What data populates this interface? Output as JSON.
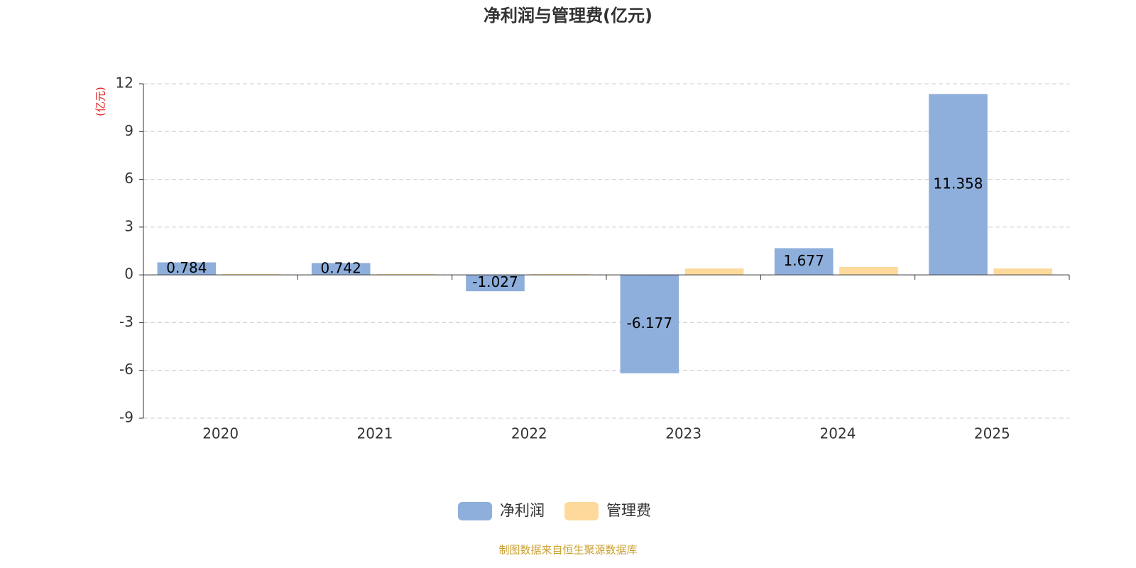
{
  "chart_data": {
    "type": "bar",
    "title": "净利润与管理费(亿元)",
    "y_label": "(亿元)",
    "source": "制图数据来自恒生聚源数据库",
    "categories": [
      "2020",
      "2021",
      "2022",
      "2023",
      "2024",
      "2025"
    ],
    "series": [
      {
        "name": "净利润",
        "color": "#8eaedb",
        "values": [
          0.784,
          0.742,
          -1.027,
          -6.177,
          1.677,
          11.358
        ],
        "show_labels": true
      },
      {
        "name": "管理费",
        "color": "#fdd99b",
        "values": [
          0.05,
          0.05,
          0.05,
          0.4,
          0.5,
          0.4
        ],
        "show_labels": false
      }
    ],
    "ylim": [
      -9,
      12
    ],
    "yticks": [
      -9,
      -6,
      -3,
      0,
      3,
      6,
      9,
      12
    ],
    "grid": true
  }
}
